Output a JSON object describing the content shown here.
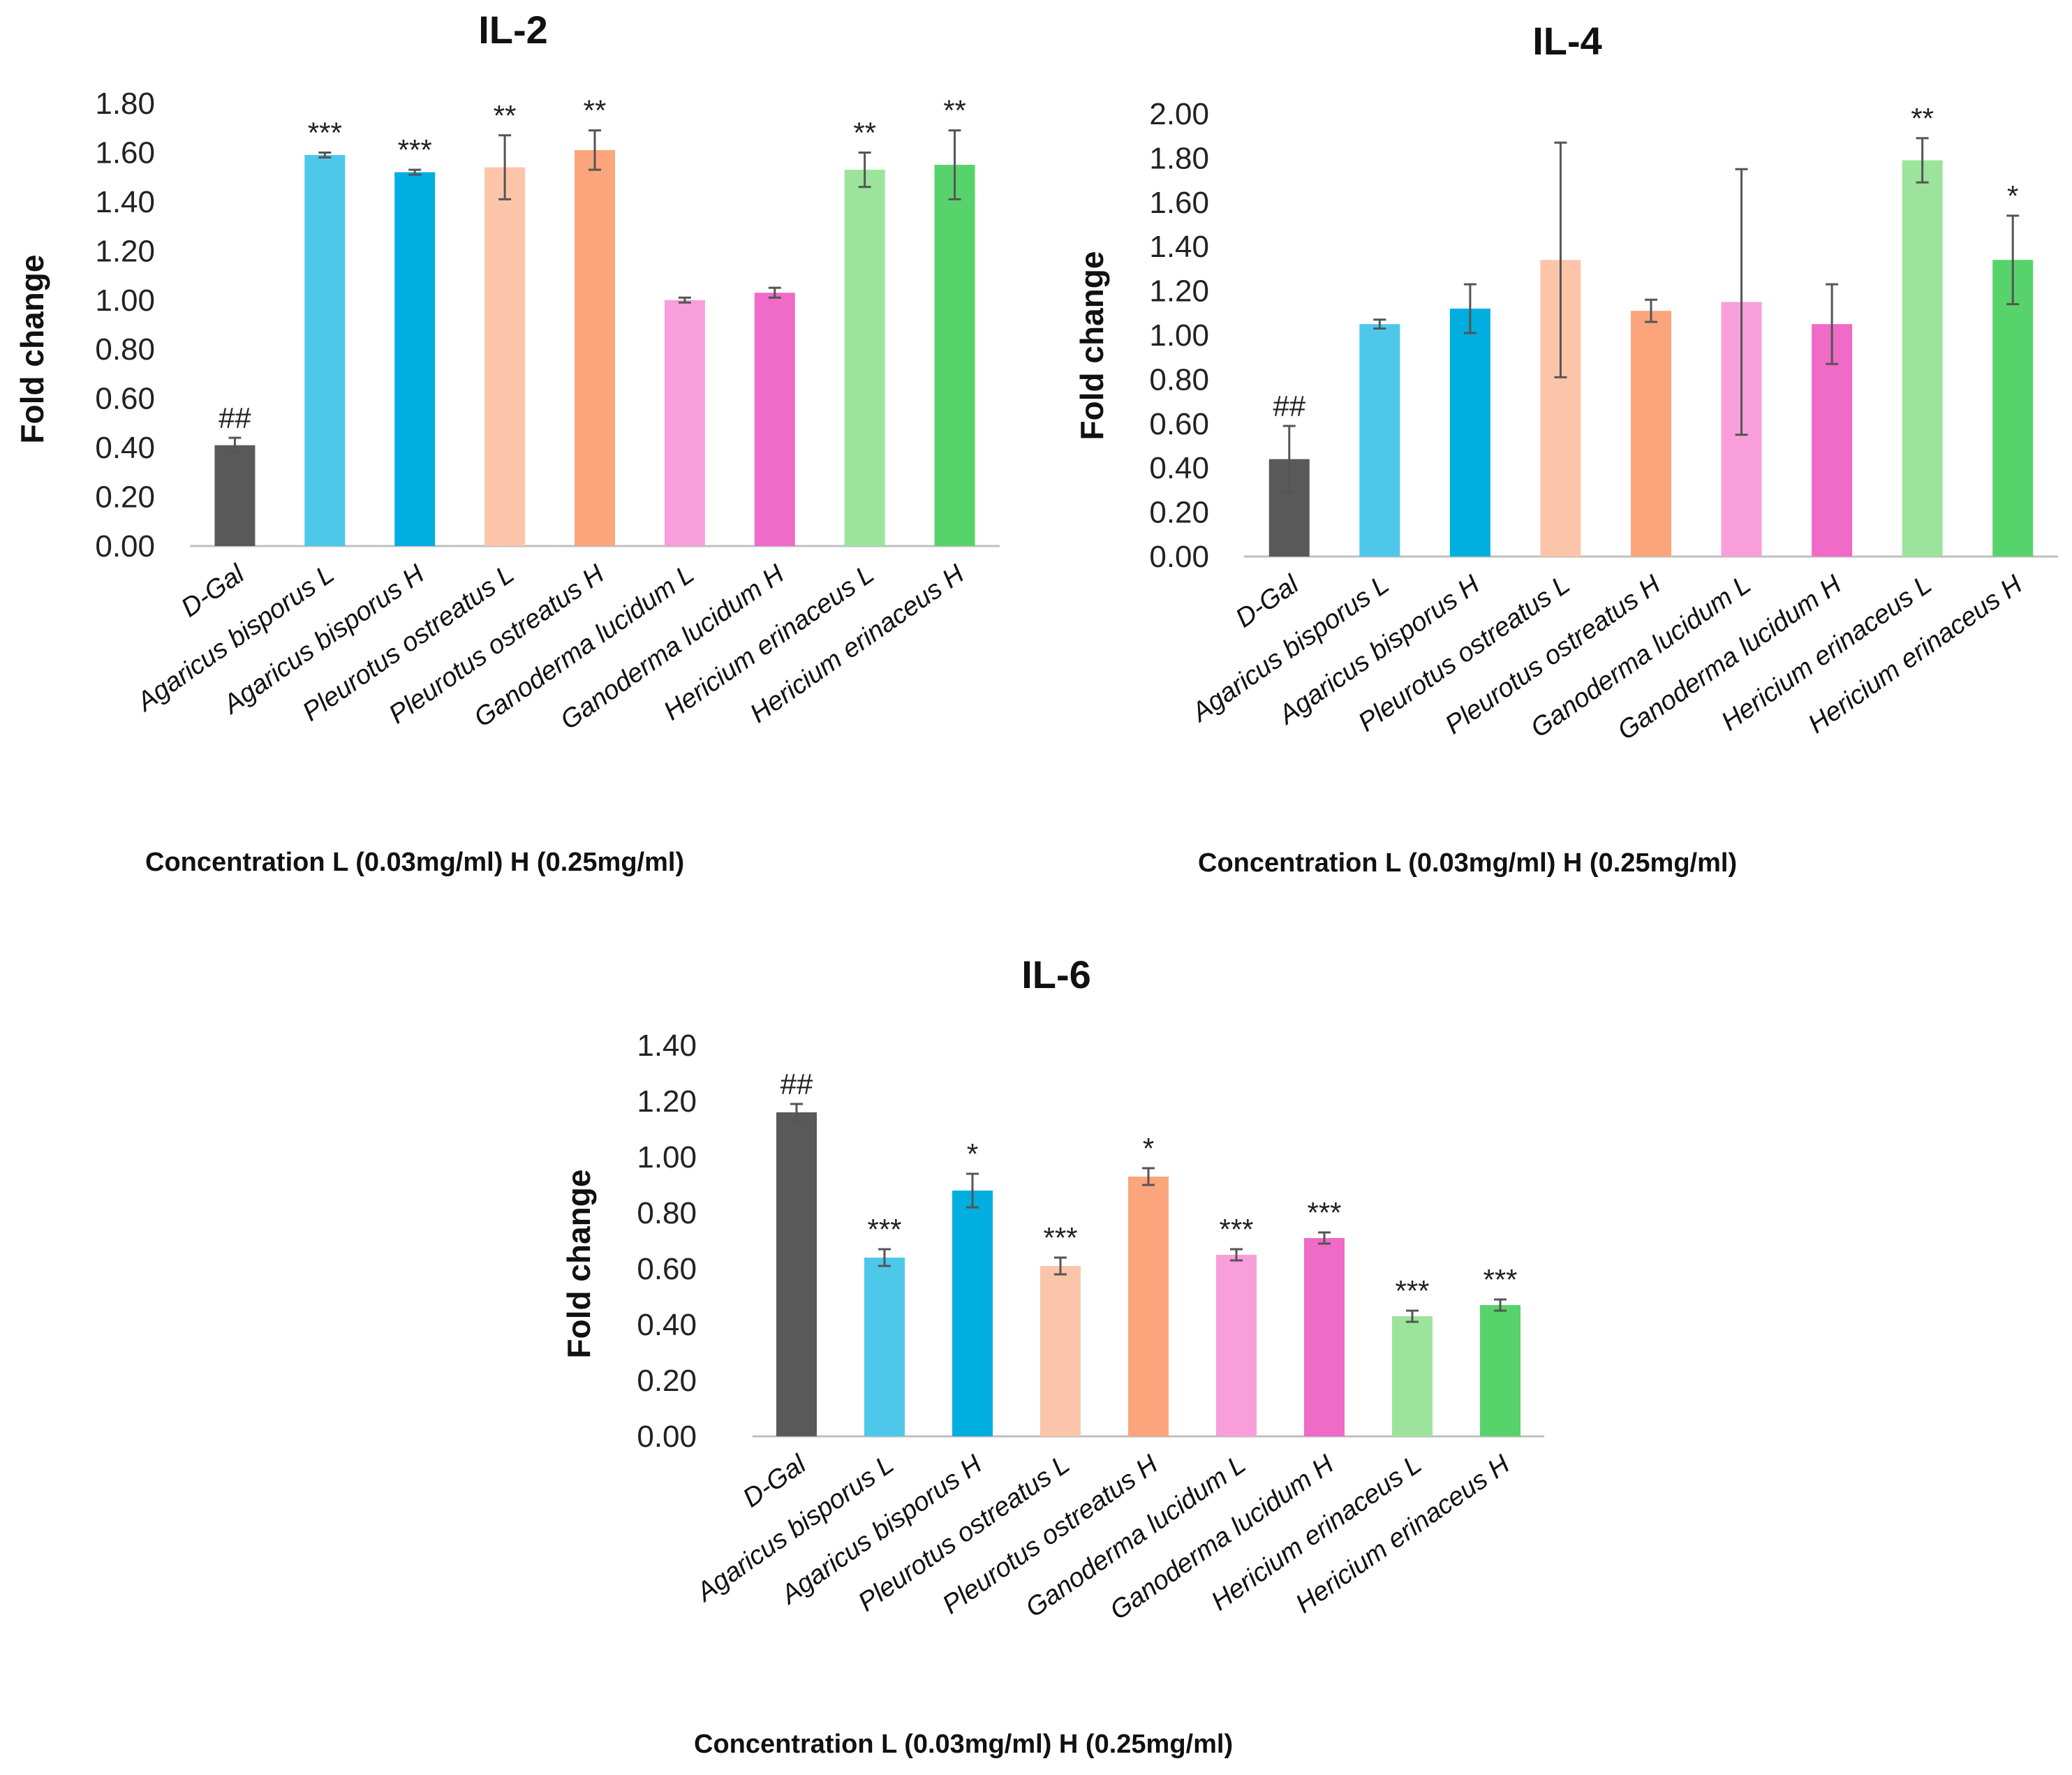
{
  "colors": [
    "#595959",
    "#4dc8eb",
    "#00aee0",
    "#fcc5a9",
    "#fca57c",
    "#f89fdb",
    "#f06ac8",
    "#9ce49c",
    "#57d36b"
  ],
  "chart_data": [
    {
      "type": "bar",
      "title": "IL-2",
      "ylabel": "Fold change",
      "xlabel": "Concentration L (0.03mg/ml)  H (0.25mg/ml)",
      "ylim": [
        0,
        1.8
      ],
      "yticks": [
        "0.00",
        "0.20",
        "0.40",
        "0.60",
        "0.80",
        "1.00",
        "1.20",
        "1.40",
        "1.60",
        "1.80"
      ],
      "grid": false,
      "categories": [
        "D-Gal",
        "Agaricus bisporus L",
        "Agaricus bisporus H",
        "Pleurotus ostreatus L",
        "Pleurotus ostreatus H",
        "Ganoderma lucidum L",
        "Ganoderma lucidum H",
        "Hericium erinaceus L",
        "Hericium erinaceus H"
      ],
      "values": [
        0.41,
        1.59,
        1.52,
        1.54,
        1.61,
        1.0,
        1.03,
        1.53,
        1.55
      ],
      "errors": [
        0.03,
        0.01,
        0.01,
        0.13,
        0.08,
        0.01,
        0.02,
        0.07,
        0.14
      ],
      "significance": [
        "##",
        "***",
        "***",
        "**",
        "**",
        "",
        "",
        "**",
        "**"
      ]
    },
    {
      "type": "bar",
      "title": "IL-4",
      "ylabel": "Fold change",
      "xlabel": "Concentration L (0.03mg/ml)  H (0.25mg/ml)",
      "ylim": [
        0,
        2.0
      ],
      "yticks": [
        "0.00",
        "0.20",
        "0.40",
        "0.60",
        "0.80",
        "1.00",
        "1.20",
        "1.40",
        "1.60",
        "1.80",
        "2.00"
      ],
      "grid": false,
      "categories": [
        "D-Gal",
        "Agaricus bisporus L",
        "Agaricus bisporus H",
        "Pleurotus ostreatus L",
        "Pleurotus ostreatus H",
        "Ganoderma lucidum L",
        "Ganoderma lucidum H",
        "Hericium erinaceus L",
        "Hericium erinaceus H"
      ],
      "values": [
        0.44,
        1.05,
        1.12,
        1.34,
        1.11,
        1.15,
        1.05,
        1.79,
        1.34
      ],
      "errors": [
        0.15,
        0.02,
        0.11,
        0.53,
        0.05,
        0.6,
        0.18,
        0.1,
        0.2
      ],
      "significance": [
        "##",
        "",
        "",
        "",
        "",
        "",
        "",
        "**",
        "*"
      ]
    },
    {
      "type": "bar",
      "title": "IL-6",
      "ylabel": "Fold change",
      "xlabel": "Concentration L (0.03mg/ml)  H (0.25mg/ml)",
      "ylim": [
        0,
        1.4
      ],
      "yticks": [
        "0.00",
        "0.20",
        "0.40",
        "0.60",
        "0.80",
        "1.00",
        "1.20",
        "1.40"
      ],
      "grid": false,
      "categories": [
        "D-Gal",
        "Agaricus bisporus L",
        "Agaricus bisporus H",
        "Pleurotus ostreatus L",
        "Pleurotus ostreatus H",
        "Ganoderma lucidum L",
        "Ganoderma lucidum H",
        "Hericium erinaceus L",
        "Hericium erinaceus H"
      ],
      "values": [
        1.16,
        0.64,
        0.88,
        0.61,
        0.93,
        0.65,
        0.71,
        0.43,
        0.47
      ],
      "errors": [
        0.03,
        0.03,
        0.06,
        0.03,
        0.03,
        0.02,
        0.02,
        0.02,
        0.02
      ],
      "significance": [
        "##",
        "***",
        "*",
        "***",
        "*",
        "***",
        "***",
        "***",
        "***"
      ]
    }
  ]
}
